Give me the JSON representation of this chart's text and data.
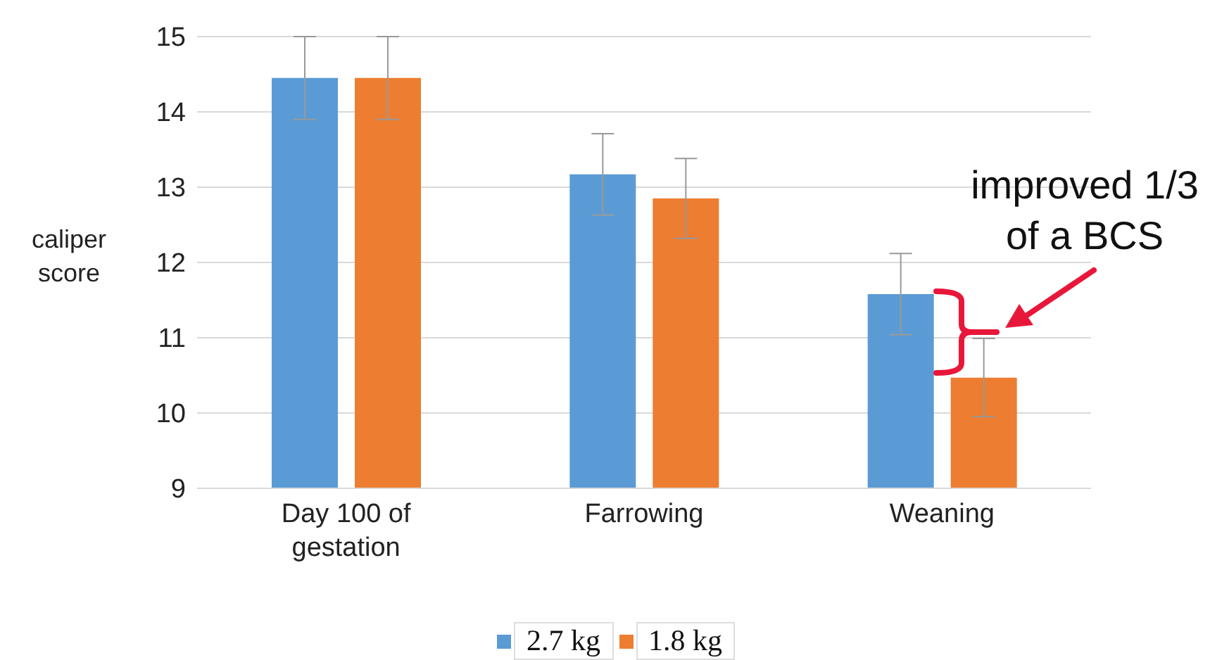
{
  "chart_data": {
    "type": "bar",
    "ylabel": "caliper score",
    "categories": [
      "Day 100 of gestation",
      "Farrowing",
      "Weaning"
    ],
    "series": [
      {
        "name": "2.7 kg",
        "color": "#5b9bd5",
        "values": [
          14.45,
          13.17,
          11.58
        ],
        "errors": [
          0.55,
          0.54,
          0.54
        ]
      },
      {
        "name": "1.8 kg",
        "color": "#ed7d31",
        "values": [
          14.45,
          12.85,
          10.47
        ],
        "errors": [
          0.55,
          0.53,
          0.52
        ]
      }
    ],
    "ylim": [
      9,
      15
    ],
    "yticks": [
      9,
      10,
      11,
      12,
      13,
      14,
      15
    ],
    "grid": "y",
    "legend": "bottom",
    "annotations": [
      "improved 1/3 of a BCS"
    ]
  }
}
